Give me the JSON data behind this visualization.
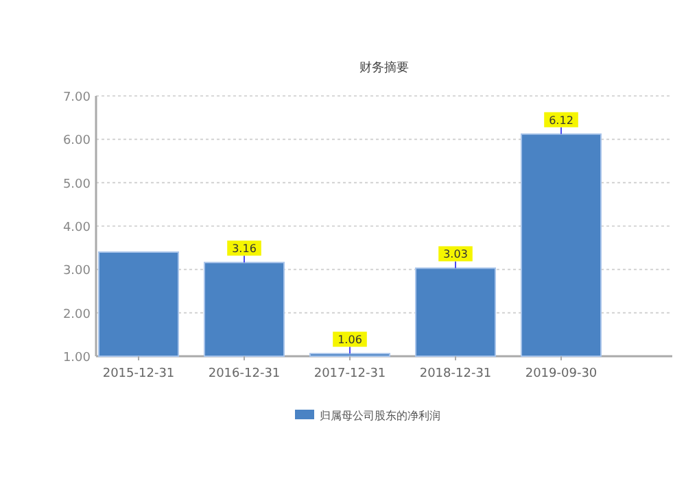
{
  "chart_data": {
    "type": "bar",
    "title": "财务摘要",
    "categories": [
      "2015-12-31",
      "2016-12-31",
      "2017-12-31",
      "2018-12-31",
      "2019-09-30"
    ],
    "series": [
      {
        "name": "归属母公司股东的净利润",
        "color": "#4a83c4",
        "values": [
          3.4,
          3.16,
          1.06,
          3.03,
          6.12
        ],
        "value_labels": [
          null,
          "3.16",
          "1.06",
          "3.03",
          "6.12"
        ]
      }
    ],
    "ylim": [
      1,
      7
    ],
    "yticks": [
      {
        "value": 1,
        "label": "1.00"
      },
      {
        "value": 2,
        "label": "2.00"
      },
      {
        "value": 3,
        "label": "3.00"
      },
      {
        "value": 4,
        "label": "4.00"
      },
      {
        "value": 5,
        "label": "5.00"
      },
      {
        "value": 6,
        "label": "6.00"
      },
      {
        "value": 7,
        "label": "7.00"
      }
    ],
    "grid": "y",
    "legend": "bottom"
  }
}
